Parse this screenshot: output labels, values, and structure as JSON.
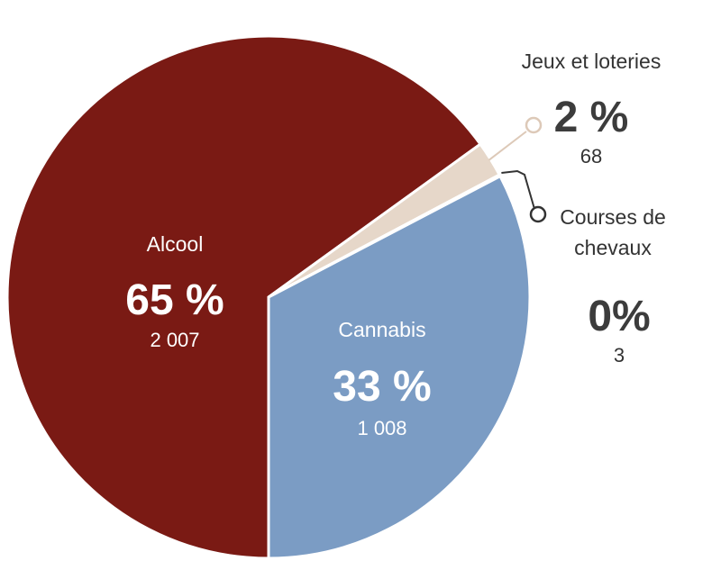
{
  "chart_data": {
    "type": "pie",
    "title": "",
    "colors": {
      "alcool": "#7a1a14",
      "jeux": "#e6d7c9",
      "courses": "#cfd8e4",
      "cannabis": "#7b9cc4",
      "inside_text": "#ffffff",
      "outside_text": "#333333",
      "pct_outside": "#3c3c3c",
      "leader_jeux": "#ddc9b8",
      "leader_courses": "#333333",
      "separator": "#ffffff"
    },
    "slices": [
      {
        "key": "alcool",
        "label": "Alcool",
        "percent_label": "65 %",
        "count": 2007,
        "count_label": "2 007"
      },
      {
        "key": "jeux",
        "label": "Jeux et loteries",
        "percent_label": "2 %",
        "count": 68,
        "count_label": "68"
      },
      {
        "key": "courses",
        "label_lines": [
          "Courses de",
          "chevaux"
        ],
        "percent_label": "0%",
        "count": 3,
        "count_label": "3"
      },
      {
        "key": "cannabis",
        "label": "Cannabis",
        "percent_label": "33 %",
        "count": 1008,
        "count_label": "1 008"
      }
    ]
  }
}
